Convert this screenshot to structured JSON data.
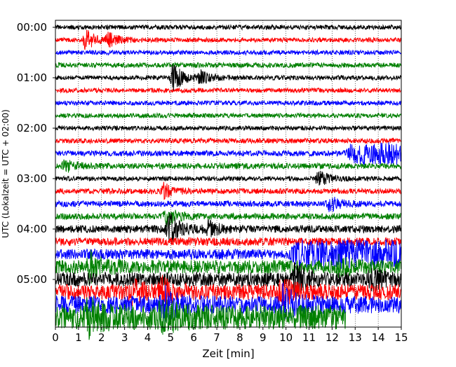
{
  "chart_data": {
    "type": "line",
    "title": "",
    "xlabel": "Zeit  [min]",
    "ylabel": "UTC (Lokalzeit = UTC + 02:00)",
    "xlim": [
      0,
      15
    ],
    "x_ticks": [
      0,
      1,
      2,
      3,
      4,
      5,
      6,
      7,
      8,
      9,
      10,
      11,
      12,
      13,
      14,
      15
    ],
    "x_tick_labels": [
      "0",
      "1",
      "2",
      "3",
      "4",
      "5",
      "6",
      "7",
      "8",
      "9",
      "10",
      "11",
      "12",
      "13",
      "14",
      "15"
    ],
    "y_tick_labels": [
      "00:00",
      "01:00",
      "02:00",
      "03:00",
      "04:00",
      "05:00"
    ],
    "minutes_per_trace": 15,
    "trace_colors": [
      "#000000",
      "#ff0000",
      "#0000ff",
      "#008000"
    ],
    "grid": "vertical dotted",
    "traces": [
      {
        "start": "00:00",
        "amplitude": 1.0,
        "end_minute": 15,
        "events": []
      },
      {
        "start": "00:15",
        "amplitude": 1.0,
        "end_minute": 15,
        "events": [
          {
            "minute": 1.3,
            "amplitude": 4.5
          },
          {
            "minute": 2.3,
            "amplitude": 2.5
          }
        ]
      },
      {
        "start": "00:30",
        "amplitude": 1.0,
        "end_minute": 15,
        "events": []
      },
      {
        "start": "00:45",
        "amplitude": 1.1,
        "end_minute": 15,
        "events": []
      },
      {
        "start": "01:00",
        "amplitude": 1.0,
        "end_minute": 15,
        "events": [
          {
            "minute": 5.1,
            "amplitude": 6.0
          },
          {
            "minute": 6.3,
            "amplitude": 2.5
          }
        ]
      },
      {
        "start": "01:15",
        "amplitude": 1.0,
        "end_minute": 15,
        "events": []
      },
      {
        "start": "01:30",
        "amplitude": 1.0,
        "end_minute": 15,
        "events": []
      },
      {
        "start": "01:45",
        "amplitude": 1.0,
        "end_minute": 15,
        "events": []
      },
      {
        "start": "02:00",
        "amplitude": 1.0,
        "end_minute": 15,
        "events": []
      },
      {
        "start": "02:15",
        "amplitude": 1.1,
        "end_minute": 15,
        "events": []
      },
      {
        "start": "02:30",
        "amplitude": 1.2,
        "end_minute": 15,
        "events": [
          {
            "minute": 12.9,
            "amplitude": 4.0,
            "duration": 2.1
          }
        ]
      },
      {
        "start": "02:45",
        "amplitude": 1.3,
        "end_minute": 15,
        "events": [
          {
            "minute": 0.4,
            "amplitude": 2.5
          }
        ]
      },
      {
        "start": "03:00",
        "amplitude": 1.0,
        "end_minute": 15,
        "events": [
          {
            "minute": 11.4,
            "amplitude": 3.5
          }
        ]
      },
      {
        "start": "03:15",
        "amplitude": 1.2,
        "end_minute": 15,
        "events": [
          {
            "minute": 4.7,
            "amplitude": 3.0
          }
        ]
      },
      {
        "start": "03:30",
        "amplitude": 1.3,
        "end_minute": 15,
        "events": [
          {
            "minute": 11.9,
            "amplitude": 3.0
          }
        ]
      },
      {
        "start": "03:45",
        "amplitude": 1.4,
        "end_minute": 15,
        "events": [
          {
            "minute": 4.8,
            "amplitude": 4.0
          }
        ]
      },
      {
        "start": "04:00",
        "amplitude": 1.7,
        "end_minute": 15,
        "events": [
          {
            "minute": 4.9,
            "amplitude": 7.0
          },
          {
            "minute": 6.6,
            "amplitude": 3.0
          }
        ]
      },
      {
        "start": "04:15",
        "amplitude": 1.8,
        "end_minute": 15,
        "events": []
      },
      {
        "start": "04:30",
        "amplitude": 2.3,
        "end_minute": 15,
        "events": [
          {
            "minute": 10.5,
            "amplitude": 4.5,
            "duration": 4.5
          }
        ]
      },
      {
        "start": "04:45",
        "amplitude": 3.0,
        "end_minute": 15,
        "events": [
          {
            "minute": 1.5,
            "amplitude": 6.0
          },
          {
            "minute": 12.3,
            "amplitude": 3.0
          }
        ]
      },
      {
        "start": "05:00",
        "amplitude": 3.2,
        "end_minute": 15,
        "events": [
          {
            "minute": 10.4,
            "amplitude": 6.0
          },
          {
            "minute": 13.7,
            "amplitude": 3.5
          }
        ]
      },
      {
        "start": "05:15",
        "amplitude": 3.5,
        "end_minute": 15,
        "events": [
          {
            "minute": 3.3,
            "amplitude": 4.0
          },
          {
            "minute": 4.6,
            "amplitude": 4.5
          },
          {
            "minute": 9.8,
            "amplitude": 5.0
          }
        ]
      },
      {
        "start": "05:30",
        "amplitude": 4.0,
        "end_minute": 15,
        "events": [
          {
            "minute": 4.7,
            "amplitude": 6.0
          },
          {
            "minute": 9.9,
            "amplitude": 6.5
          }
        ]
      },
      {
        "start": "05:45",
        "amplitude": 5.5,
        "end_minute": 12.6,
        "events": [
          {
            "minute": 1.4,
            "amplitude": 6.0
          },
          {
            "minute": 4.6,
            "amplitude": 6.0
          }
        ]
      }
    ]
  }
}
